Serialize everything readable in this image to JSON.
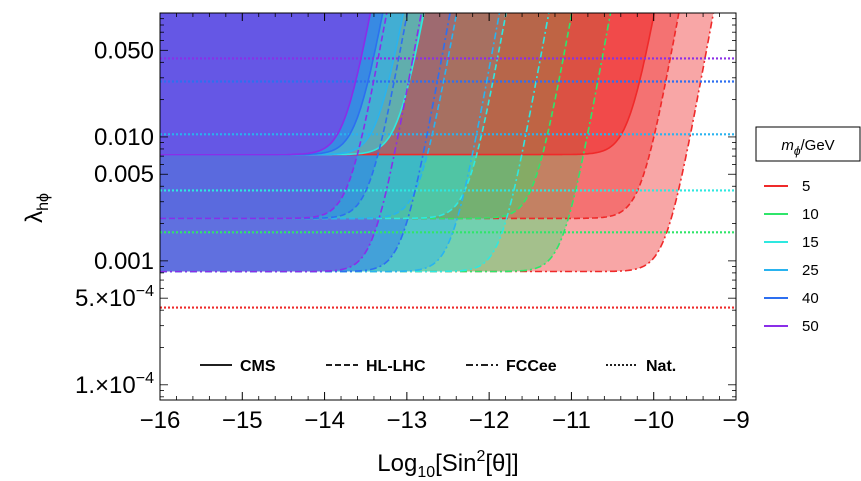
{
  "chart_data": {
    "type": "area",
    "xlabel": "Log",
    "xlabel_sub": "10",
    "xlabel_mid": "[Sin",
    "xlabel_sup": "2",
    "xlabel_tail": "[θ]]",
    "ylabel": "λ",
    "ylabel_sub": "hϕ",
    "xlim": [
      -16,
      -9
    ],
    "ylim": [
      7.54e-05,
      0.1
    ],
    "y_scale": "log",
    "x_ticks": [
      "−16",
      "−15",
      "−14",
      "−13",
      "−12",
      "−11",
      "−10",
      "−9"
    ],
    "y_ticks": [
      {
        "value": 0.05,
        "label": "0.050"
      },
      {
        "value": 0.01,
        "label": "0.010"
      },
      {
        "value": 0.005,
        "label": "0.005"
      },
      {
        "value": 0.001,
        "label": "0.001"
      },
      {
        "value": 0.0005,
        "label": "5.×10",
        "exp": "−4"
      },
      {
        "value": 0.0001,
        "label": "1.×10",
        "exp": "−4"
      }
    ],
    "line_style_legend": [
      {
        "label": "CMS",
        "style": "solid"
      },
      {
        "label": "HL-LHC",
        "style": "dashed"
      },
      {
        "label": "FCCee",
        "style": "dashdot"
      },
      {
        "label": "Nat.",
        "style": "dotted"
      }
    ],
    "mass_legend_title": "m",
    "mass_legend_title_sub": "ϕ",
    "mass_legend_title_tail": "/GeV",
    "series": [
      {
        "name": "5",
        "color": "#ef2a2a",
        "fcc_x_edge": -9.85,
        "fcc_floor": 0.00082,
        "hl_x_edge": -10.15,
        "hl_floor": 0.0022,
        "cms_x_edge": -10.3,
        "cms_floor": 0.0072,
        "nat": 0.00042
      },
      {
        "name": "10",
        "color": "#2fe56a",
        "fcc_x_edge": -11.1,
        "fcc_floor": 0.00082,
        "hl_x_edge": -11.45,
        "hl_floor": 0.0022,
        "cms_x_edge": null,
        "cms_floor": null,
        "nat": 0.0017
      },
      {
        "name": "15",
        "color": "#2ee8e0",
        "fcc_x_edge": -11.85,
        "fcc_floor": 0.00082,
        "hl_x_edge": -12.25,
        "hl_floor": 0.0022,
        "cms_x_edge": -13.1,
        "cms_floor": 0.0072,
        "nat": 0.0037
      },
      {
        "name": "25",
        "color": "#29b3ef",
        "fcc_x_edge": -12.45,
        "fcc_floor": 0.00082,
        "hl_x_edge": -12.85,
        "hl_floor": 0.0022,
        "cms_x_edge": -13.35,
        "cms_floor": 0.0072,
        "nat": 0.0105
      },
      {
        "name": "40",
        "color": "#2d6ff0",
        "fcc_x_edge": -13.05,
        "fcc_floor": 0.00082,
        "hl_x_edge": -13.45,
        "hl_floor": 0.0022,
        "cms_x_edge": -13.6,
        "cms_floor": 0.0072,
        "nat": 0.028
      },
      {
        "name": "50",
        "color": "#8a2ee8",
        "fcc_x_edge": -13.4,
        "fcc_floor": 0.00082,
        "hl_x_edge": -13.7,
        "hl_floor": 0.0022,
        "cms_x_edge": -13.75,
        "cms_floor": 0.0072,
        "nat": 0.043
      }
    ],
    "grid": false,
    "legend_placement": "bottom-inside and right-outside"
  }
}
